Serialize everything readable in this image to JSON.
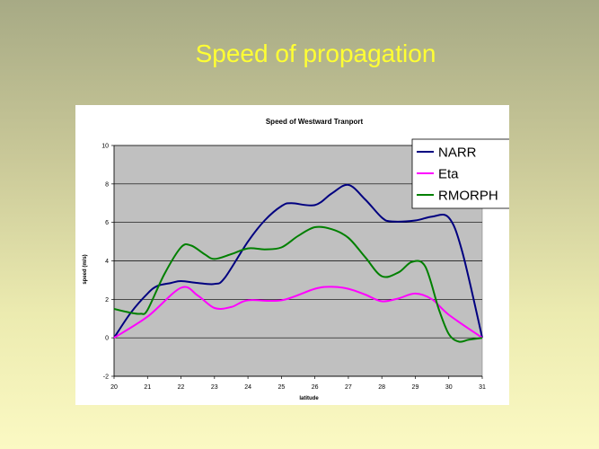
{
  "slide": {
    "title": "Speed of propagation"
  },
  "chart_data": {
    "type": "line",
    "title": "Speed of Westward Tranport",
    "xlabel": "latitude",
    "ylabel": "speed (m/s)",
    "xlim": [
      20,
      31
    ],
    "ylim": [
      -2,
      10
    ],
    "xticks": [
      20,
      21,
      22,
      23,
      24,
      25,
      26,
      27,
      28,
      29,
      30,
      31
    ],
    "yticks": [
      -2,
      0,
      2,
      4,
      6,
      8,
      10
    ],
    "grid": true,
    "legend": "top-right",
    "colors": {
      "plot_bg": "#c0c0c0",
      "grid": "#000000"
    },
    "series": [
      {
        "name": "NARR",
        "color": "#000080",
        "x": [
          20,
          20.5,
          21,
          21.3,
          21.7,
          22,
          22.5,
          23,
          23.3,
          24,
          24.5,
          25,
          25.3,
          26,
          26.5,
          27,
          27.5,
          28,
          28.3,
          29,
          29.5,
          30,
          30.4,
          31
        ],
        "y": [
          0,
          1.3,
          2.3,
          2.7,
          2.85,
          2.95,
          2.85,
          2.8,
          3.1,
          5.0,
          6.1,
          6.85,
          7.0,
          6.9,
          7.5,
          7.95,
          7.2,
          6.25,
          6.05,
          6.1,
          6.3,
          6.25,
          4.5,
          0
        ]
      },
      {
        "name": "Eta",
        "color": "#ff00ff",
        "x": [
          20,
          21,
          22,
          22.5,
          23,
          23.5,
          24,
          25,
          26,
          26.5,
          27,
          27.5,
          28,
          28.5,
          29,
          29.5,
          30,
          31
        ],
        "y": [
          0,
          1.1,
          2.6,
          2.2,
          1.55,
          1.6,
          1.95,
          1.95,
          2.55,
          2.65,
          2.55,
          2.25,
          1.9,
          2.05,
          2.3,
          2.0,
          1.2,
          0
        ]
      },
      {
        "name": "RMORPH",
        "color": "#008000",
        "x": [
          20,
          20.5,
          20.8,
          21,
          21.5,
          22,
          22.3,
          22.7,
          23,
          23.5,
          24,
          24.5,
          25,
          25.5,
          26,
          26.5,
          27,
          27.5,
          28,
          28.5,
          28.9,
          29.3,
          29.7,
          30,
          30.3,
          30.6,
          31
        ],
        "y": [
          1.5,
          1.3,
          1.25,
          1.45,
          3.3,
          4.7,
          4.8,
          4.35,
          4.1,
          4.35,
          4.65,
          4.6,
          4.7,
          5.3,
          5.75,
          5.65,
          5.2,
          4.2,
          3.2,
          3.4,
          3.95,
          3.7,
          1.5,
          0.2,
          -0.2,
          -0.1,
          0
        ]
      }
    ]
  }
}
